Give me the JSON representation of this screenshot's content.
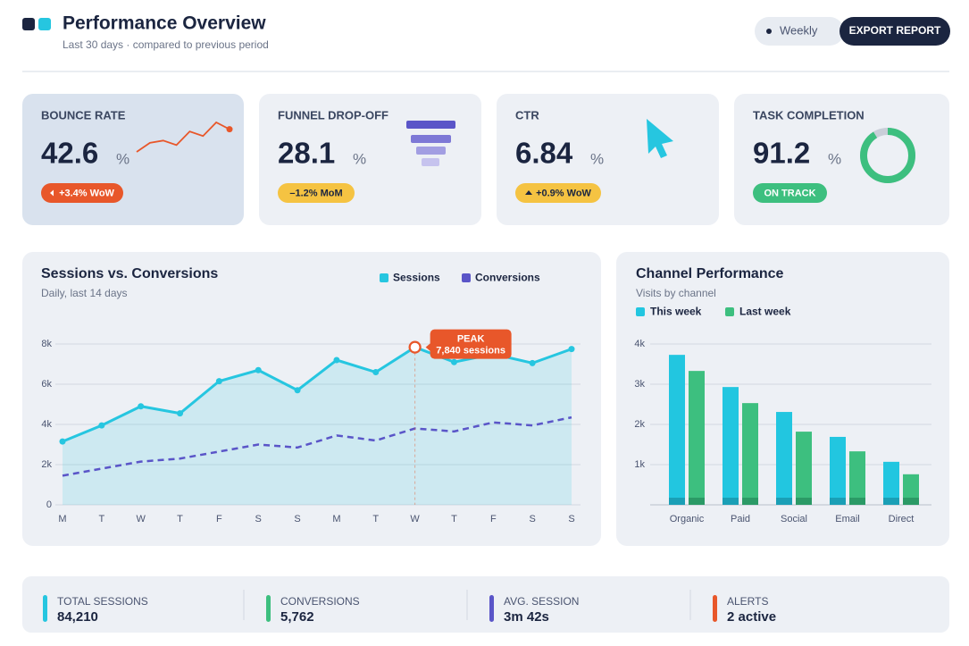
{
  "header": {
    "title": "Performance Overview",
    "subtitle": "Last 30 days · compared to previous period",
    "toggle": "Weekly",
    "button": "EXPORT REPORT"
  },
  "kpis": [
    {
      "label": "BOUNCE RATE",
      "value": 42.6,
      "unit": "%",
      "badge": "+3.4% WoW",
      "sparkline": [
        2,
        6,
        7,
        5,
        11,
        9,
        15,
        12
      ]
    },
    {
      "label": "FUNNEL DROP-OFF",
      "value": 28.1,
      "unit": "%",
      "badge": "–1.2% MoM"
    },
    {
      "label": "CTR",
      "value": 6.84,
      "unit": "%",
      "badge": "+0.9% WoW"
    },
    {
      "label": "TASK COMPLETION",
      "value": 91.2,
      "unit": "%",
      "badge": "ON TRACK"
    }
  ],
  "chart_data": [
    {
      "type": "line",
      "title": "Sessions vs. Conversions",
      "subtitle": "Daily, last 14 days",
      "categories": [
        "M",
        "T",
        "W",
        "T",
        "F",
        "S",
        "S",
        "M",
        "T",
        "W",
        "T",
        "F",
        "S",
        "S"
      ],
      "series": [
        {
          "name": "Sessions",
          "color": "#26c6e0",
          "values": [
            3150,
            3950,
            4900,
            4550,
            6150,
            6700,
            5700,
            7200,
            6600,
            7840,
            7100,
            7500,
            7050,
            7750
          ]
        },
        {
          "name": "Conversions",
          "color": "#5a55c8",
          "values": [
            1450,
            1800,
            2150,
            2300,
            2650,
            3000,
            2850,
            3450,
            3200,
            3800,
            3650,
            4100,
            3950,
            4350
          ]
        }
      ],
      "ylim": [
        0,
        8000
      ],
      "yticks": [
        0,
        {
          "value": 2000,
          "label": "2k"
        },
        {
          "value": 4000,
          "label": "4k"
        },
        {
          "value": 6000,
          "label": "6k"
        },
        {
          "value": 8000,
          "label": "8k"
        }
      ],
      "grid": true,
      "annotation": {
        "title": "PEAK",
        "text": "7,840 sessions"
      }
    },
    {
      "type": "bar",
      "title": "Channel Performance",
      "subtitle": "Visits by channel",
      "categories": [
        "Organic",
        "Paid",
        "Social",
        "Email",
        "Direct"
      ],
      "series": [
        {
          "name": "This week",
          "color": "#22c6e0",
          "values": [
            3730,
            2930,
            2310,
            1690,
            1070
          ]
        },
        {
          "name": "Last week",
          "color": "#3dbf7f",
          "values": [
            3330,
            2530,
            1820,
            1330,
            760
          ]
        }
      ],
      "ylim": [
        0,
        4000
      ],
      "yticks": [
        {
          "value": 1000,
          "label": "1k"
        },
        {
          "value": 2000,
          "label": "2k"
        },
        {
          "value": 3000,
          "label": "3k"
        },
        {
          "value": 4000,
          "label": "4k"
        }
      ],
      "grid": true
    }
  ],
  "footer": [
    {
      "label": "TOTAL SESSIONS",
      "value": "84,210",
      "color": "#26c6e0"
    },
    {
      "label": "CONVERSIONS",
      "value": "5,762",
      "color": "#3dbf7f"
    },
    {
      "label": "AVG. SESSION",
      "value": "3m 42s",
      "color": "#5a55c8"
    },
    {
      "label": "ALERTS",
      "value": "2 active",
      "color": "#e8572a"
    }
  ]
}
